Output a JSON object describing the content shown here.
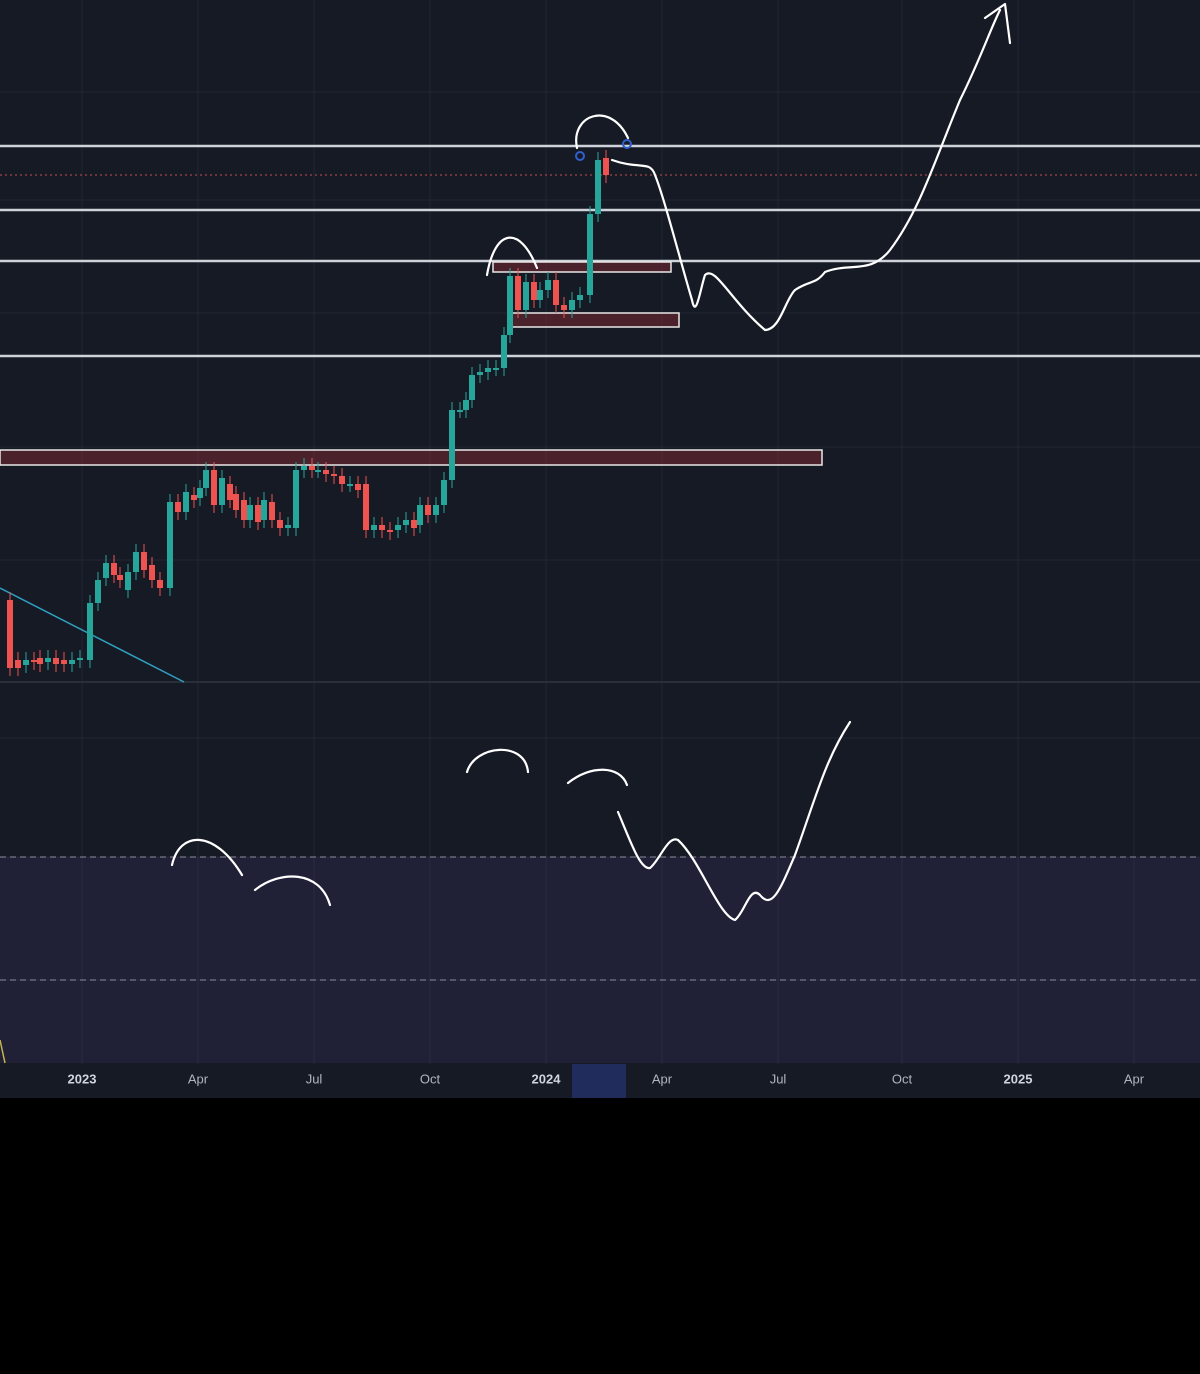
{
  "time_axis": {
    "labels": [
      "2023",
      "Apr",
      "Jul",
      "Oct",
      "2024",
      "Apr",
      "Jul",
      "Oct",
      "2025",
      "Apr"
    ]
  }
}
